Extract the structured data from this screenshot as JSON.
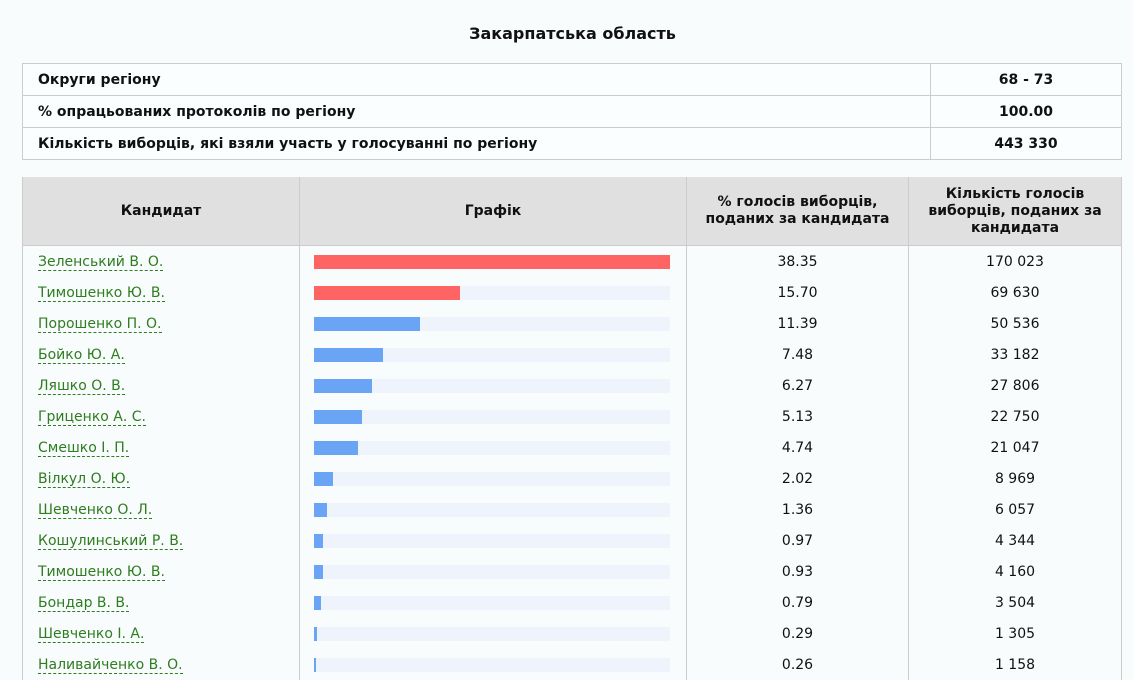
{
  "title": "Закарпатська область",
  "info": [
    {
      "label": "Округи регіону",
      "value": "68 - 73"
    },
    {
      "label": "% опрацьованих протоколів по регіону",
      "value": "100.00"
    },
    {
      "label": "Кількість виборців, які взяли участь у голосуванні по регіону",
      "value": "443 330"
    }
  ],
  "headers": {
    "candidate": "Кандидат",
    "chart": "Графік",
    "pct": "% голосів виборців, поданих за кандидата",
    "votes": "Кількість голосів виборців, поданих за кандидата"
  },
  "colors": {
    "top2": "#ff6464",
    "others": "#6aa5f5",
    "track": "#eef3fc"
  },
  "rows": [
    {
      "name": "Зеленський В. О.",
      "pct": "38.35",
      "votes": "170 023"
    },
    {
      "name": "Тимошенко Ю. В.",
      "pct": "15.70",
      "votes": "69 630"
    },
    {
      "name": "Порошенко П. О.",
      "pct": "11.39",
      "votes": "50 536"
    },
    {
      "name": "Бойко Ю. А.",
      "pct": "7.48",
      "votes": "33 182"
    },
    {
      "name": "Ляшко О. В.",
      "pct": "6.27",
      "votes": "27 806"
    },
    {
      "name": "Гриценко А. С.",
      "pct": "5.13",
      "votes": "22 750"
    },
    {
      "name": "Смешко І. П.",
      "pct": "4.74",
      "votes": "21 047"
    },
    {
      "name": "Вілкул О. Ю.",
      "pct": "2.02",
      "votes": "8 969"
    },
    {
      "name": "Шевченко О. Л.",
      "pct": "1.36",
      "votes": "6 057"
    },
    {
      "name": "Кошулинський Р. В.",
      "pct": "0.97",
      "votes": "4 344"
    },
    {
      "name": "Тимошенко Ю. В.",
      "pct": "0.93",
      "votes": "4 160"
    },
    {
      "name": "Бондар В. В.",
      "pct": "0.79",
      "votes": "3 504"
    },
    {
      "name": "Шевченко І. А.",
      "pct": "0.29",
      "votes": "1 305"
    },
    {
      "name": "Наливайченко В. О.",
      "pct": "0.26",
      "votes": "1 158"
    }
  ]
}
